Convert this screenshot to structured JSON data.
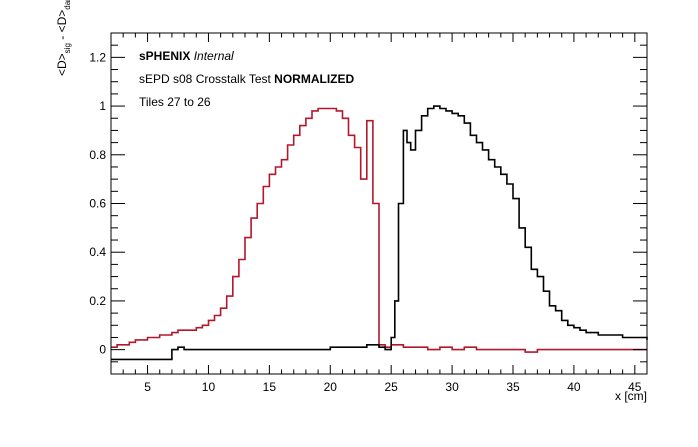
{
  "chart_data": {
    "type": "line",
    "style": "step-histogram",
    "xlabel": "x [cm]",
    "ylabel_parts": {
      "a": "<D>",
      "a_sub": "sig",
      "sep": " - ",
      "b": "<D>",
      "b_sub": "dark"
    },
    "xlim": [
      2,
      46
    ],
    "ylim": [
      -0.1,
      1.3
    ],
    "xticks": [
      5,
      10,
      15,
      20,
      25,
      30,
      35,
      40,
      45
    ],
    "yticks": [
      0,
      0.2,
      0.4,
      0.6,
      0.8,
      1,
      1.2
    ],
    "ytick_labels": [
      "0",
      "0.2",
      "0.4",
      "0.6",
      "0.8",
      "1",
      "1.2"
    ],
    "grid": false,
    "annotations": {
      "brand_bold": "sPHENIX",
      "brand_italic": " Internal",
      "line2_normal": "sEPD s08 Crosstalk Test ",
      "line2_bold": "NORMALIZED",
      "line3": "Tiles 27 to 26"
    },
    "series": [
      {
        "color": "#b2182b",
        "x": [
          2,
          2.5,
          3,
          3.5,
          4,
          4.5,
          5,
          5.5,
          6,
          6.5,
          7,
          7.5,
          8,
          8.5,
          9,
          9.5,
          10,
          10.5,
          11,
          11.5,
          12,
          12.5,
          13,
          13.5,
          14,
          14.5,
          15,
          15.5,
          16,
          16.5,
          17,
          17.5,
          18,
          18.5,
          19,
          19.5,
          20,
          20.5,
          21,
          21.5,
          22,
          22.5,
          23,
          23.5,
          24,
          24.5,
          25,
          26,
          27,
          28,
          29,
          30,
          31,
          32,
          33,
          34,
          35,
          36,
          37,
          38,
          39,
          40,
          41,
          42,
          43,
          44,
          45,
          46
        ],
        "y": [
          0.01,
          0.02,
          0.02,
          0.03,
          0.04,
          0.04,
          0.05,
          0.05,
          0.06,
          0.06,
          0.07,
          0.08,
          0.08,
          0.08,
          0.09,
          0.1,
          0.12,
          0.14,
          0.17,
          0.22,
          0.3,
          0.37,
          0.46,
          0.54,
          0.6,
          0.67,
          0.72,
          0.75,
          0.78,
          0.84,
          0.88,
          0.92,
          0.95,
          0.98,
          0.99,
          0.99,
          0.99,
          0.98,
          0.95,
          0.88,
          0.83,
          0.7,
          0.94,
          0.6,
          0.02,
          0.01,
          0.02,
          0.01,
          0.01,
          0.0,
          0.01,
          0.0,
          0.01,
          0.0,
          0.0,
          0.0,
          0.0,
          -0.01,
          0.0,
          0.0,
          0.0,
          0.0,
          0.0,
          0.0,
          0.0,
          0.0,
          0.0,
          0.0
        ]
      },
      {
        "color": "#000000",
        "x": [
          2,
          3,
          4,
          5,
          6,
          7,
          7.5,
          8,
          9,
          10,
          11,
          12,
          13,
          14,
          15,
          16,
          17,
          18,
          19,
          20,
          21,
          22,
          23,
          24,
          24.5,
          25,
          25.3,
          25.6,
          26,
          26.3,
          26.6,
          27,
          27.5,
          28,
          28.5,
          29,
          29.5,
          30,
          30.5,
          31,
          31.5,
          32,
          32.5,
          33,
          33.5,
          34,
          34.5,
          35,
          35.5,
          36,
          36.5,
          37,
          37.5,
          38,
          38.5,
          39,
          39.5,
          40,
          40.5,
          41,
          41.5,
          42,
          43,
          44,
          45,
          46
        ],
        "y": [
          -0.04,
          -0.04,
          -0.04,
          -0.04,
          -0.04,
          0.0,
          0.01,
          0.0,
          0.0,
          0.0,
          0.0,
          0.0,
          0.0,
          0.0,
          0.0,
          0.0,
          0.0,
          0.0,
          0.0,
          0.01,
          0.01,
          0.01,
          0.02,
          0.01,
          0.0,
          0.05,
          0.2,
          0.6,
          0.9,
          0.85,
          0.82,
          0.9,
          0.96,
          0.99,
          1.0,
          0.99,
          0.98,
          0.97,
          0.96,
          0.93,
          0.88,
          0.85,
          0.82,
          0.78,
          0.75,
          0.72,
          0.68,
          0.62,
          0.5,
          0.42,
          0.33,
          0.3,
          0.24,
          0.18,
          0.16,
          0.12,
          0.1,
          0.09,
          0.08,
          0.07,
          0.07,
          0.06,
          0.06,
          0.05,
          0.05,
          0.04
        ]
      }
    ]
  }
}
